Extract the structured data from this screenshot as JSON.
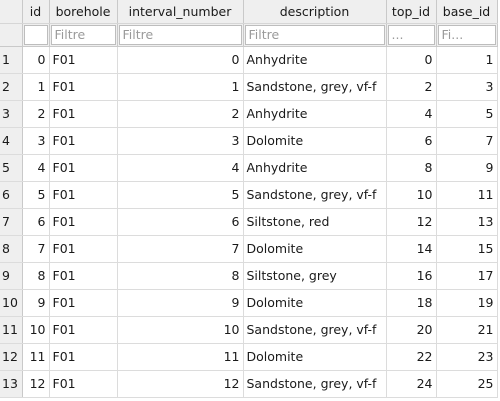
{
  "columns": [
    {
      "key": "id",
      "label": "id",
      "filter_placeholder": "",
      "align": "num"
    },
    {
      "key": "borehole",
      "label": "borehole",
      "filter_placeholder": "Filtre",
      "align": "txt"
    },
    {
      "key": "interval_number",
      "label": "interval_number",
      "filter_placeholder": "Filtre",
      "align": "num"
    },
    {
      "key": "description",
      "label": "description",
      "filter_placeholder": "Filtre",
      "align": "txt"
    },
    {
      "key": "top_id",
      "label": "top_id",
      "filter_placeholder": "...",
      "align": "num"
    },
    {
      "key": "base_id",
      "label": "base_id",
      "filter_placeholder": "Fi...",
      "align": "num"
    }
  ],
  "rows": [
    {
      "rownum": "1",
      "id": "0",
      "borehole": "F01",
      "interval_number": "0",
      "description": "Anhydrite",
      "top_id": "0",
      "base_id": "1"
    },
    {
      "rownum": "2",
      "id": "1",
      "borehole": "F01",
      "interval_number": "1",
      "description": "Sandstone, grey, vf-f",
      "top_id": "2",
      "base_id": "3"
    },
    {
      "rownum": "3",
      "id": "2",
      "borehole": "F01",
      "interval_number": "2",
      "description": "Anhydrite",
      "top_id": "4",
      "base_id": "5"
    },
    {
      "rownum": "4",
      "id": "3",
      "borehole": "F01",
      "interval_number": "3",
      "description": "Dolomite",
      "top_id": "6",
      "base_id": "7"
    },
    {
      "rownum": "5",
      "id": "4",
      "borehole": "F01",
      "interval_number": "4",
      "description": "Anhydrite",
      "top_id": "8",
      "base_id": "9"
    },
    {
      "rownum": "6",
      "id": "5",
      "borehole": "F01",
      "interval_number": "5",
      "description": "Sandstone, grey, vf-f",
      "top_id": "10",
      "base_id": "11"
    },
    {
      "rownum": "7",
      "id": "6",
      "borehole": "F01",
      "interval_number": "6",
      "description": "Siltstone, red",
      "top_id": "12",
      "base_id": "13"
    },
    {
      "rownum": "8",
      "id": "7",
      "borehole": "F01",
      "interval_number": "7",
      "description": "Dolomite",
      "top_id": "14",
      "base_id": "15"
    },
    {
      "rownum": "9",
      "id": "8",
      "borehole": "F01",
      "interval_number": "8",
      "description": "Siltstone, grey",
      "top_id": "16",
      "base_id": "17"
    },
    {
      "rownum": "10",
      "id": "9",
      "borehole": "F01",
      "interval_number": "9",
      "description": "Dolomite",
      "top_id": "18",
      "base_id": "19"
    },
    {
      "rownum": "11",
      "id": "10",
      "borehole": "F01",
      "interval_number": "10",
      "description": "Sandstone, grey, vf-f",
      "top_id": "20",
      "base_id": "21"
    },
    {
      "rownum": "12",
      "id": "11",
      "borehole": "F01",
      "interval_number": "11",
      "description": "Dolomite",
      "top_id": "22",
      "base_id": "23"
    },
    {
      "rownum": "13",
      "id": "12",
      "borehole": "F01",
      "interval_number": "12",
      "description": "Sandstone, grey, vf-f",
      "top_id": "24",
      "base_id": "25"
    }
  ]
}
